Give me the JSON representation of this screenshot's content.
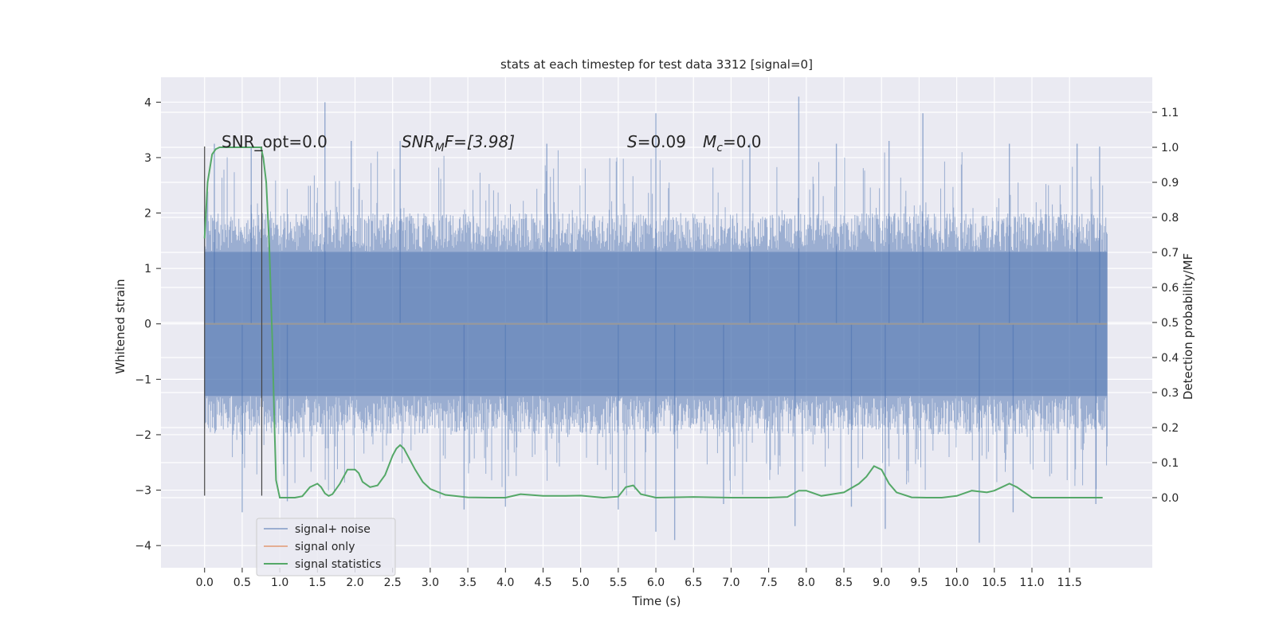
{
  "chart_data": {
    "type": "line",
    "title": "stats at each timestep for test data 3312 [signal=0]",
    "xlabel": "Time (s)",
    "ylabel": "Whitened strain",
    "y2label": "Detection probability/MF",
    "xlim": [
      -0.58,
      12.6
    ],
    "ylim": [
      -4.4,
      4.45
    ],
    "y2lim": [
      -0.2,
      1.2
    ],
    "x_ticks": [
      0.0,
      0.5,
      1.0,
      1.5,
      2.0,
      2.5,
      3.0,
      3.5,
      4.0,
      4.5,
      5.0,
      5.5,
      6.0,
      6.5,
      7.0,
      7.5,
      8.0,
      8.5,
      9.0,
      9.5,
      10.0,
      10.5,
      11.0,
      11.5
    ],
    "x_tick_labels": [
      "0.0",
      "0.5",
      "1.0",
      "1.5",
      "2.0",
      "2.5",
      "3.0",
      "3.5",
      "4.0",
      "4.5",
      "5.0",
      "5.5",
      "6.0",
      "6.5",
      "7.0",
      "7.5",
      "8.0",
      "8.5",
      "9.0",
      "9.5",
      "10.0",
      "10.5",
      "11.0",
      "11.5"
    ],
    "y_ticks": [
      -4,
      -3,
      -2,
      -1,
      0,
      1,
      2,
      3,
      4
    ],
    "y_tick_labels": [
      "−4",
      "−3",
      "−2",
      "−1",
      "0",
      "1",
      "2",
      "3",
      "4"
    ],
    "y2_ticks": [
      0.0,
      0.1,
      0.2,
      0.3,
      0.4,
      0.5,
      0.6,
      0.7,
      0.8,
      0.9,
      1.0,
      1.1
    ],
    "y2_tick_labels": [
      "0.0",
      "0.1",
      "0.2",
      "0.3",
      "0.4",
      "0.5",
      "0.6",
      "0.7",
      "0.8",
      "0.9",
      "1.0",
      "1.1"
    ],
    "grid": true,
    "legend_position": "lower-left",
    "annotations": {
      "snr_opt": "SNR_opt=0.0",
      "snr_mf_a": "SNR",
      "snr_mf_sub": "M",
      "snr_mf_b": "F=[3.98]",
      "s_a": "S",
      "s_b": "=0.09",
      "mc_a": "M",
      "mc_sub": "c",
      "mc_b": "=0.0"
    },
    "vlines_x": [
      0.0,
      0.76
    ],
    "colors": {
      "noise": "#4c72b0",
      "signal": "#dd8452",
      "stats": "#55a868",
      "background": "#eaeaf2",
      "grid": "#ffffff"
    },
    "series": [
      {
        "name": "signal+ noise",
        "kind": "noise",
        "x_range": [
          0.0,
          12.0
        ],
        "envelope_core": 1.3,
        "peaks": [
          [
            0.13,
            3.25
          ],
          [
            0.62,
            3.2
          ],
          [
            1.6,
            4.0
          ],
          [
            1.95,
            3.3
          ],
          [
            2.6,
            3.3
          ],
          [
            4.55,
            3.25
          ],
          [
            6.0,
            3.8
          ],
          [
            7.25,
            3.25
          ],
          [
            7.9,
            4.1
          ],
          [
            8.4,
            3.25
          ],
          [
            9.1,
            3.3
          ],
          [
            9.55,
            3.8
          ],
          [
            10.7,
            3.25
          ],
          [
            11.6,
            3.25
          ],
          [
            11.9,
            3.2
          ]
        ],
        "troughs": [
          [
            0.5,
            -3.4
          ],
          [
            1.1,
            -3.2
          ],
          [
            3.45,
            -3.35
          ],
          [
            4.0,
            -3.3
          ],
          [
            5.5,
            -3.35
          ],
          [
            6.0,
            -3.75
          ],
          [
            6.25,
            -3.9
          ],
          [
            6.9,
            -3.25
          ],
          [
            7.85,
            -3.65
          ],
          [
            8.6,
            -3.3
          ],
          [
            9.05,
            -3.7
          ],
          [
            10.3,
            -3.95
          ],
          [
            10.75,
            -3.4
          ],
          [
            11.85,
            -3.25
          ]
        ]
      },
      {
        "name": "signal only",
        "kind": "flat",
        "x": [
          0.0,
          12.0
        ],
        "y": [
          0.0,
          0.0
        ]
      },
      {
        "name": "signal statistics",
        "kind": "stats",
        "x": [
          0.0,
          0.04,
          0.1,
          0.15,
          0.2,
          0.3,
          0.45,
          0.6,
          0.7,
          0.75,
          0.78,
          0.82,
          0.86,
          0.9,
          0.93,
          0.95,
          1.0,
          1.1,
          1.2,
          1.3,
          1.4,
          1.5,
          1.55,
          1.6,
          1.65,
          1.7,
          1.8,
          1.9,
          2.0,
          2.05,
          2.1,
          2.2,
          2.3,
          2.4,
          2.5,
          2.55,
          2.6,
          2.65,
          2.7,
          2.8,
          2.9,
          3.0,
          3.2,
          3.5,
          3.8,
          4.0,
          4.2,
          4.5,
          4.8,
          5.0,
          5.3,
          5.5,
          5.6,
          5.7,
          5.8,
          6.0,
          6.5,
          7.0,
          7.5,
          7.75,
          7.9,
          8.0,
          8.2,
          8.5,
          8.7,
          8.8,
          8.9,
          9.0,
          9.1,
          9.2,
          9.4,
          9.6,
          9.8,
          10.0,
          10.2,
          10.4,
          10.5,
          10.6,
          10.7,
          10.8,
          11.0,
          11.5,
          11.94
        ],
        "y": [
          0.74,
          0.9,
          0.98,
          0.995,
          1.0,
          1.0,
          1.0,
          1.0,
          1.0,
          1.0,
          0.97,
          0.9,
          0.72,
          0.45,
          0.2,
          0.05,
          0.0,
          0.0,
          0.0,
          0.004,
          0.03,
          0.04,
          0.03,
          0.012,
          0.005,
          0.01,
          0.04,
          0.08,
          0.08,
          0.07,
          0.045,
          0.03,
          0.035,
          0.065,
          0.12,
          0.14,
          0.15,
          0.14,
          0.12,
          0.08,
          0.045,
          0.025,
          0.008,
          0.001,
          0.0,
          0.0,
          0.01,
          0.005,
          0.005,
          0.006,
          0.0,
          0.003,
          0.03,
          0.035,
          0.01,
          0.0,
          0.002,
          0.0,
          0.0,
          0.002,
          0.02,
          0.02,
          0.005,
          0.015,
          0.04,
          0.06,
          0.09,
          0.08,
          0.04,
          0.015,
          0.001,
          0.0,
          0.0,
          0.005,
          0.02,
          0.015,
          0.02,
          0.03,
          0.04,
          0.03,
          0.0,
          0.0,
          0.0
        ]
      }
    ]
  }
}
